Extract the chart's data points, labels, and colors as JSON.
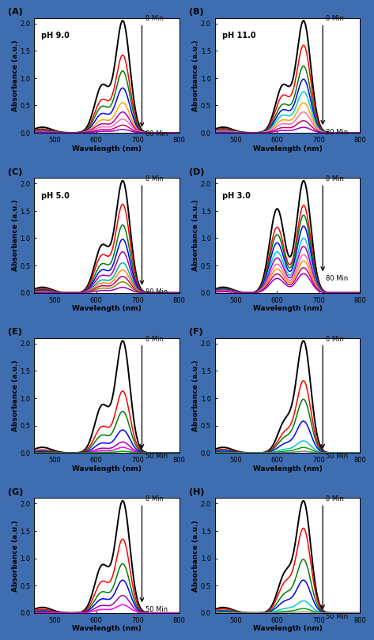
{
  "panels": [
    {
      "label": "A",
      "ph": "pH 9.0",
      "end_label": "80 Min",
      "n_curves": 9,
      "peak1": 664,
      "peak2": 614,
      "shoulder_ratio": 0.42,
      "peak2_ratio": 1.0,
      "colors": [
        "#000000",
        "#ff0000",
        "#008000",
        "#0000ff",
        "#ffa500",
        "#aa00aa",
        "#ff69b4",
        "#cc0066",
        "#9900cc"
      ],
      "scales": [
        2.05,
        1.42,
        1.13,
        0.82,
        0.55,
        0.38,
        0.25,
        0.14,
        0.06
      ]
    },
    {
      "label": "B",
      "ph": "pH 11.0",
      "end_label": "80 Min",
      "n_curves": 9,
      "peak1": 664,
      "peak2": 614,
      "shoulder_ratio": 0.42,
      "peak2_ratio": 1.0,
      "colors": [
        "#000000",
        "#ff0000",
        "#008000",
        "#0000ff",
        "#00cccc",
        "#ffa500",
        "#ff69b4",
        "#cc0066",
        "#9900cc"
      ],
      "scales": [
        2.05,
        1.6,
        1.22,
        0.98,
        0.75,
        0.55,
        0.38,
        0.22,
        0.1
      ]
    },
    {
      "label": "C",
      "ph": "pH 5.0",
      "end_label": "80 Min",
      "n_curves": 10,
      "peak1": 664,
      "peak2": 614,
      "shoulder_ratio": 0.42,
      "peak2_ratio": 1.0,
      "colors": [
        "#000000",
        "#ff0000",
        "#008000",
        "#0000ff",
        "#aa00aa",
        "#00aaaa",
        "#ff8c00",
        "#cc0066",
        "#888800",
        "#9900cc"
      ],
      "scales": [
        2.05,
        1.62,
        1.24,
        0.98,
        0.75,
        0.55,
        0.42,
        0.3,
        0.2,
        0.1
      ]
    },
    {
      "label": "D",
      "ph": "pH 3.0",
      "end_label": "80 Min",
      "n_curves": 10,
      "peak1": 664,
      "peak2": 600,
      "shoulder_ratio": 0.75,
      "peak2_ratio": 1.0,
      "colors": [
        "#000000",
        "#ff0000",
        "#008000",
        "#0000ff",
        "#00cccc",
        "#aa00aa",
        "#ff69b4",
        "#ff8c00",
        "#cc0066",
        "#9900cc"
      ],
      "scales": [
        2.05,
        1.6,
        1.42,
        1.22,
        1.0,
        0.85,
        0.7,
        0.58,
        0.46,
        0.35
      ]
    },
    {
      "label": "E",
      "ph": "",
      "end_label": "50 Min",
      "n_curves": 7,
      "peak1": 664,
      "peak2": 614,
      "shoulder_ratio": 0.42,
      "peak2_ratio": 1.0,
      "colors": [
        "#000000",
        "#ff0000",
        "#008000",
        "#0000ff",
        "#aa00aa",
        "#ff00ff",
        "#00aa00"
      ],
      "scales": [
        2.05,
        1.13,
        0.76,
        0.42,
        0.2,
        0.1,
        0.03
      ]
    },
    {
      "label": "F",
      "ph": "",
      "end_label": "50 Min",
      "n_curves": 7,
      "peak1": 664,
      "peak2": 620,
      "shoulder_ratio": 0.28,
      "peak2_ratio": 1.0,
      "colors": [
        "#000000",
        "#ff0000",
        "#008000",
        "#0000ff",
        "#00cccc",
        "#00aa00",
        "#888888"
      ],
      "scales": [
        2.05,
        1.32,
        0.98,
        0.58,
        0.22,
        0.1,
        0.03
      ]
    },
    {
      "label": "G",
      "ph": "",
      "end_label": "50 Min",
      "n_curves": 6,
      "peak1": 664,
      "peak2": 614,
      "shoulder_ratio": 0.42,
      "peak2_ratio": 1.0,
      "colors": [
        "#000000",
        "#ff0000",
        "#008000",
        "#0000ff",
        "#aa00aa",
        "#ff00ff"
      ],
      "scales": [
        2.05,
        1.35,
        0.9,
        0.6,
        0.32,
        0.15
      ]
    },
    {
      "label": "H",
      "ph": "",
      "end_label": "50 Min",
      "n_curves": 7,
      "peak1": 664,
      "peak2": 620,
      "shoulder_ratio": 0.35,
      "peak2_ratio": 1.0,
      "colors": [
        "#000000",
        "#ff0000",
        "#008000",
        "#0000ff",
        "#00cccc",
        "#00aa00",
        "#888888"
      ],
      "scales": [
        2.05,
        1.55,
        0.98,
        0.6,
        0.22,
        0.08,
        0.02
      ]
    }
  ],
  "xmin": 450,
  "xmax": 800,
  "ymin": 0.0,
  "ymax": 2.1,
  "xlabel": "Wavelength (nm)",
  "ylabel": "Absorbance (a.u.)",
  "bg_color": "#3e6eb0",
  "panel_bg": "#ffffff"
}
